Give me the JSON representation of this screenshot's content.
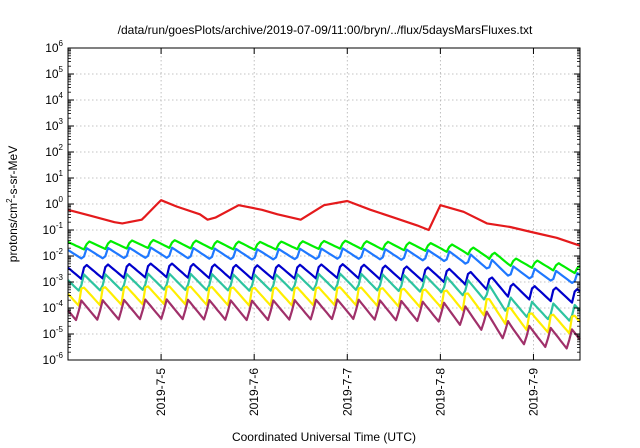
{
  "chart_data": {
    "type": "line",
    "title": "/data/run/goesPlots/archive/2019-07-09/11:00/bryn/../flux/5daysMarsFluxes.txt",
    "xlabel": "Coordinated Universal Time (UTC)",
    "ylabel_parts": [
      "protons/cm",
      "2",
      "-s-sr-MeV"
    ],
    "x_range": [
      "2019-07-04 00:00",
      "2019-07-09 12:00"
    ],
    "x_ticks": [
      "2019-7-5",
      "2019-7-6",
      "2019-7-7",
      "2019-7-8",
      "2019-7-9"
    ],
    "x_tick_dates": [
      "2019-07-05 00:00",
      "2019-07-06 00:00",
      "2019-07-07 00:00",
      "2019-07-08 00:00",
      "2019-07-09 00:00"
    ],
    "y_scale": "log",
    "y_range": [
      1e-06,
      1000000.0
    ],
    "y_ticks": [
      {
        "base": "10",
        "exp": "-6"
      },
      {
        "base": "10",
        "exp": "-5"
      },
      {
        "base": "10",
        "exp": "-4"
      },
      {
        "base": "10",
        "exp": "-3"
      },
      {
        "base": "10",
        "exp": "-2"
      },
      {
        "base": "10",
        "exp": "-1"
      },
      {
        "base": "10",
        "exp": "0"
      },
      {
        "base": "10",
        "exp": "1"
      },
      {
        "base": "10",
        "exp": "2"
      },
      {
        "base": "10",
        "exp": "3"
      },
      {
        "base": "10",
        "exp": "4"
      },
      {
        "base": "10",
        "exp": "5"
      },
      {
        "base": "10",
        "exp": "6"
      }
    ],
    "grid": true,
    "series": [
      {
        "color": "#e41a1c",
        "x": [
          "2019-07-04 00:00",
          "2019-07-04 06:00",
          "2019-07-04 12:00",
          "2019-07-04 14:00",
          "2019-07-04 19:00",
          "2019-07-04 20:00",
          "2019-07-04 23:00",
          "2019-07-05 00:00",
          "2019-07-05 04:00",
          "2019-07-05 10:00",
          "2019-07-05 12:00",
          "2019-07-05 14:00",
          "2019-07-05 20:00",
          "2019-07-06 02:00",
          "2019-07-06 06:00",
          "2019-07-06 12:00",
          "2019-07-06 18:00",
          "2019-07-07 00:00",
          "2019-07-07 06:00",
          "2019-07-07 12:00",
          "2019-07-07 18:00",
          "2019-07-07 21:00",
          "2019-07-08 00:00",
          "2019-07-08 06:00",
          "2019-07-08 12:00",
          "2019-07-08 18:00",
          "2019-07-09 00:00",
          "2019-07-09 06:00",
          "2019-07-09 12:00"
        ],
        "y": [
          0.6,
          0.35,
          0.2,
          0.18,
          0.25,
          0.35,
          1.0,
          1.4,
          0.8,
          0.4,
          0.25,
          0.3,
          0.9,
          0.6,
          0.4,
          0.25,
          0.9,
          1.3,
          0.6,
          0.3,
          0.15,
          0.1,
          0.9,
          0.5,
          0.18,
          0.13,
          0.08,
          0.05,
          0.025
        ]
      },
      {
        "color": "#00ee00",
        "x": [
          "2019-07-04 00:00",
          "2019-07-05 00:00",
          "2019-07-06 00:00",
          "2019-07-07 00:00",
          "2019-07-08 00:00",
          "2019-07-08 06:00",
          "2019-07-08 12:00",
          "2019-07-08 18:00",
          "2019-07-09 00:00",
          "2019-07-09 12:00"
        ],
        "y": [
          0.025,
          0.03,
          0.025,
          0.028,
          0.022,
          0.018,
          0.012,
          0.006,
          0.005,
          0.003
        ],
        "amp": 2.2,
        "period_h": 5.5
      },
      {
        "color": "#1f78ff",
        "x": [
          "2019-07-04 00:00",
          "2019-07-05 00:00",
          "2019-07-06 00:00",
          "2019-07-07 00:00",
          "2019-07-08 00:00",
          "2019-07-08 06:00",
          "2019-07-08 12:00",
          "2019-07-08 18:00",
          "2019-07-09 00:00",
          "2019-07-09 12:00"
        ],
        "y": [
          0.012,
          0.013,
          0.011,
          0.012,
          0.01,
          0.008,
          0.005,
          0.0025,
          0.002,
          0.0013
        ],
        "amp": 2.8,
        "period_h": 5.5
      },
      {
        "color": "#0000cc",
        "x": [
          "2019-07-04 00:00",
          "2019-07-05 00:00",
          "2019-07-06 00:00",
          "2019-07-07 00:00",
          "2019-07-08 00:00",
          "2019-07-08 06:00",
          "2019-07-08 12:00",
          "2019-07-08 18:00",
          "2019-07-09 00:00",
          "2019-07-09 12:00"
        ],
        "y": [
          0.0025,
          0.003,
          0.0025,
          0.0028,
          0.002,
          0.0016,
          0.001,
          0.0005,
          0.0004,
          0.0003
        ],
        "amp": 4.0,
        "period_h": 5.5
      },
      {
        "color": "#2ec4a0",
        "x": [
          "2019-07-04 00:00",
          "2019-07-05 00:00",
          "2019-07-06 00:00",
          "2019-07-07 00:00",
          "2019-07-08 00:00",
          "2019-07-08 06:00",
          "2019-07-08 12:00",
          "2019-07-08 18:00",
          "2019-07-09 00:00",
          "2019-07-09 12:00"
        ],
        "y": [
          0.0009,
          0.001,
          0.0009,
          0.001,
          0.0008,
          0.0006,
          0.0004,
          0.00012,
          8e-05,
          6e-05
        ],
        "amp": 5.0,
        "period_h": 5.5
      },
      {
        "color": "#ffee00",
        "x": [
          "2019-07-04 00:00",
          "2019-07-05 00:00",
          "2019-07-06 00:00",
          "2019-07-07 00:00",
          "2019-07-08 00:00",
          "2019-07-08 06:00",
          "2019-07-08 12:00",
          "2019-07-08 18:00",
          "2019-07-09 00:00",
          "2019-07-09 12:00"
        ],
        "y": [
          0.0003,
          0.00035,
          0.0003,
          0.00032,
          0.00025,
          0.0002,
          0.00012,
          5e-05,
          3e-05,
          2.5e-05
        ],
        "amp": 6.0,
        "period_h": 5.5
      },
      {
        "color": "#a0306a",
        "x": [
          "2019-07-04 00:00",
          "2019-07-05 00:00",
          "2019-07-06 00:00",
          "2019-07-07 00:00",
          "2019-07-08 00:00",
          "2019-07-08 06:00",
          "2019-07-08 12:00",
          "2019-07-08 18:00",
          "2019-07-09 00:00",
          "2019-07-09 12:00"
        ],
        "y": [
          8e-05,
          9e-05,
          8e-05,
          9e-05,
          7e-05,
          5e-05,
          3e-05,
          1.2e-05,
          8e-06,
          6e-06
        ],
        "amp": 7.0,
        "period_h": 5.5
      }
    ]
  }
}
